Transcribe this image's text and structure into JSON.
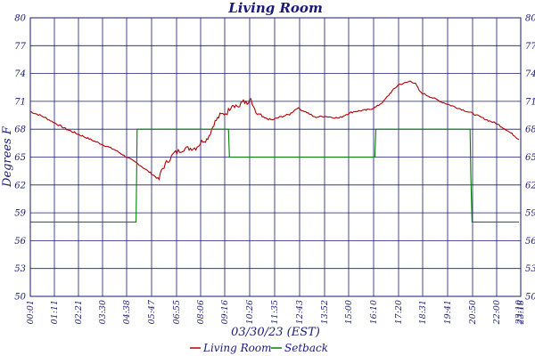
{
  "chart_data": {
    "type": "line",
    "title": "Living Room",
    "xlabel": "03/30/23 (EST)",
    "ylabel": "Degrees F",
    "ylim": [
      50,
      80
    ],
    "y_ticks": [
      "50",
      "53",
      "56",
      "59",
      "62",
      "65",
      "68",
      "71",
      "74",
      "77",
      "80"
    ],
    "x_ticks": [
      "00:01",
      "01:11",
      "02:21",
      "03:30",
      "04:38",
      "05:47",
      "06:55",
      "08:06",
      "09:16",
      "10:26",
      "11:35",
      "12:43",
      "13:52",
      "15:00",
      "16:10",
      "17:20",
      "18:31",
      "19:41",
      "20:50",
      "22:00",
      "23:10",
      "23:18"
    ],
    "grid": true,
    "legend_position": "bottom-center",
    "series": [
      {
        "name": "Living Room",
        "color": "#b30000",
        "points": [
          [
            0,
            69.9
          ],
          [
            0.5,
            69.4
          ],
          [
            1.5,
            68.0
          ],
          [
            2.5,
            66.9
          ],
          [
            3.5,
            65.8
          ],
          [
            4.5,
            64.2
          ],
          [
            4.9,
            63.4
          ],
          [
            5.15,
            62.9
          ],
          [
            5.3,
            62.6
          ],
          [
            5.4,
            63.6
          ],
          [
            5.6,
            64.4
          ],
          [
            5.9,
            65.4
          ],
          [
            6.3,
            65.9
          ],
          [
            6.8,
            66.0
          ],
          [
            7.1,
            66.8
          ],
          [
            7.25,
            66.9
          ],
          [
            7.4,
            67.6
          ],
          [
            7.55,
            68.6
          ],
          [
            7.8,
            69.5
          ],
          [
            8.1,
            69.8
          ],
          [
            8.3,
            70.7
          ],
          [
            8.6,
            70.4
          ],
          [
            8.75,
            71.2
          ],
          [
            8.9,
            70.6
          ],
          [
            9.05,
            71.2
          ],
          [
            9.15,
            70.2
          ],
          [
            9.3,
            69.6
          ],
          [
            9.6,
            69.2
          ],
          [
            9.9,
            69.0
          ],
          [
            10.2,
            69.3
          ],
          [
            10.6,
            69.6
          ],
          [
            10.9,
            70.3
          ],
          [
            11.3,
            69.8
          ],
          [
            11.6,
            69.3
          ],
          [
            12.0,
            69.4
          ],
          [
            12.3,
            69.3
          ],
          [
            12.6,
            69.2
          ],
          [
            12.9,
            69.6
          ],
          [
            13.2,
            69.9
          ],
          [
            13.5,
            70.0
          ],
          [
            13.8,
            70.1
          ],
          [
            14.1,
            70.4
          ],
          [
            14.4,
            71.0
          ],
          [
            14.7,
            72.0
          ],
          [
            15.0,
            72.8
          ],
          [
            15.3,
            73.0
          ],
          [
            15.5,
            73.2
          ],
          [
            15.7,
            72.9
          ],
          [
            15.9,
            72.0
          ],
          [
            16.3,
            71.5
          ],
          [
            16.8,
            70.9
          ],
          [
            17.4,
            70.3
          ],
          [
            18.0,
            69.7
          ],
          [
            18.6,
            69.0
          ],
          [
            19.0,
            68.6
          ],
          [
            19.4,
            68.0
          ],
          [
            19.8,
            67.3
          ],
          [
            20.0,
            66.9
          ]
        ]
      },
      {
        "name": "Setback",
        "color": "#008000",
        "points": [
          [
            0,
            58.0
          ],
          [
            4.38,
            58.0
          ],
          [
            4.42,
            68.0
          ],
          [
            8.15,
            68.0
          ],
          [
            8.19,
            65.0
          ],
          [
            14.05,
            65.0
          ],
          [
            14.09,
            68.0
          ],
          [
            17.9,
            68.0
          ],
          [
            17.93,
            63.0
          ],
          [
            17.98,
            58.0
          ],
          [
            20.0,
            58.0
          ]
        ]
      }
    ]
  }
}
